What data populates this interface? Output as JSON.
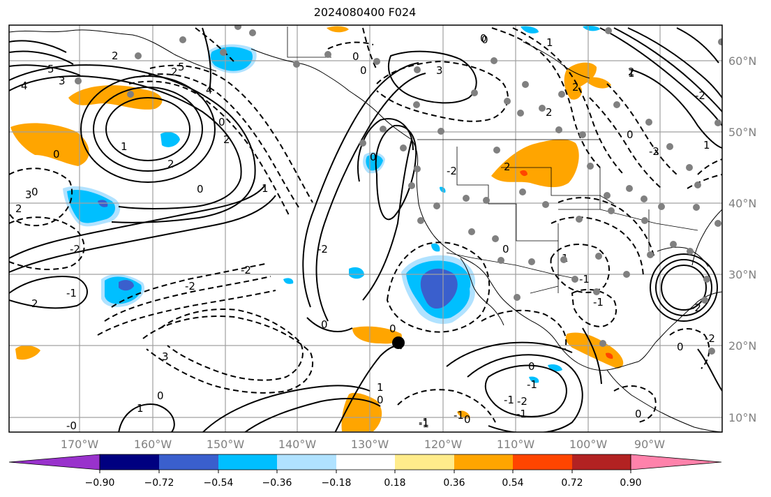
{
  "title": "2024080400 F024",
  "map": {
    "projection": "PlateCarree",
    "lon_range": [
      -180,
      -82
    ],
    "lat_range": [
      8,
      65
    ],
    "gridlines": true,
    "lon_ticks": [
      "170°W",
      "160°W",
      "150°W",
      "140°W",
      "130°W",
      "120°W",
      "110°W",
      "100°W",
      "90°W"
    ],
    "lat_ticks": [
      "60°N",
      "50°N",
      "40°N",
      "30°N",
      "20°N",
      "10°N"
    ],
    "contour_labels": [
      "5",
      "4",
      "3",
      "0",
      "2",
      "3",
      "2",
      "0",
      "2",
      "5",
      "4",
      "0",
      "2",
      "1",
      "0",
      "-2",
      "2",
      "-1",
      "1",
      "2",
      "-2",
      "-2",
      "3",
      "-2",
      "0",
      "0",
      "0",
      "3",
      "0",
      "1",
      "2",
      "1",
      "-2",
      "0",
      "2",
      "0",
      "1",
      "-1",
      "-1",
      "-2",
      "0",
      "-1",
      "0",
      "-1",
      "-2",
      "-2",
      "-2",
      "1",
      "0",
      "0",
      "0",
      "1",
      "-1",
      "-1",
      "0",
      "0",
      "0",
      "2",
      "-2",
      "2",
      "0",
      "1",
      "-1",
      "-0",
      "-1"
    ],
    "marker": "black circle",
    "colors": {
      "grid": "#a0a0a0",
      "tick_label": "#808080",
      "coast": "#000000"
    }
  },
  "colorbar": {
    "ticks": [
      "−0.90",
      "−0.72",
      "−0.54",
      "−0.36",
      "−0.18",
      "0.18",
      "0.36",
      "0.54",
      "0.72",
      "0.90"
    ],
    "colors": [
      "#9932cc",
      "#000080",
      "#3a5fcd",
      "#00bfff",
      "#b0e2ff",
      "#ffffff",
      "#ffec8b",
      "#ffa500",
      "#ff4500",
      "#b22222",
      "#ff82ab"
    ]
  }
}
